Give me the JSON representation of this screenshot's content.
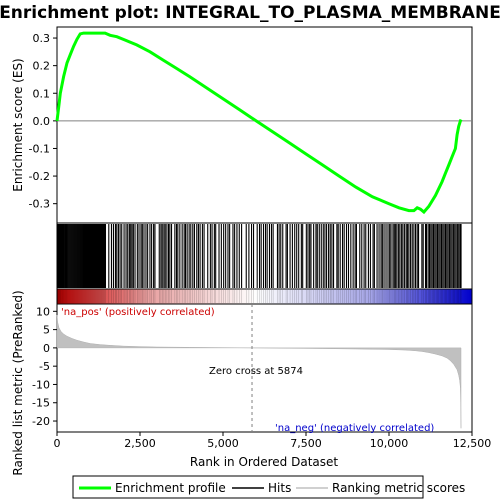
{
  "chart_data": {
    "type": "line",
    "title": "Enrichment plot: INTEGRAL_TO_PLASMA_MEMBRANE",
    "xlabel": "Rank in Ordered Dataset",
    "xlim": [
      0,
      12500
    ],
    "x_ticks": [
      0,
      2500,
      5000,
      7500,
      10000,
      12500
    ],
    "x_tick_labels": [
      "0",
      "2,500",
      "5,000",
      "7,500",
      "10,000",
      "12,500"
    ],
    "top_panel": {
      "ylabel": "Enrichment score (ES)",
      "ylim": [
        -0.37,
        0.34
      ],
      "y_ticks": [
        -0.3,
        -0.2,
        -0.1,
        0.0,
        0.1,
        0.2,
        0.3
      ],
      "y_tick_labels": [
        "-0.3",
        "-0.2",
        "-0.1",
        "0.0",
        "0.1",
        "0.2",
        "0.3"
      ],
      "series": [
        {
          "name": "Enrichment profile",
          "color": "#00ff00",
          "x": [
            0,
            50,
            100,
            200,
            300,
            400,
            500,
            600,
            700,
            800,
            900,
            1000,
            1200,
            1450,
            1600,
            1800,
            2000,
            2400,
            2800,
            3200,
            3600,
            4000,
            4500,
            5000,
            5500,
            5874,
            6500,
            7000,
            7500,
            8000,
            8500,
            9000,
            9500,
            10000,
            10300,
            10600,
            10750,
            10850,
            10950,
            11050,
            11200,
            11400,
            11600,
            11700,
            11800,
            11900,
            12000,
            12050,
            12100,
            12150,
            12170
          ],
          "y": [
            0.0,
            0.05,
            0.1,
            0.16,
            0.21,
            0.24,
            0.27,
            0.295,
            0.315,
            0.318,
            0.318,
            0.318,
            0.318,
            0.318,
            0.31,
            0.305,
            0.295,
            0.275,
            0.25,
            0.22,
            0.19,
            0.16,
            0.12,
            0.08,
            0.04,
            0.01,
            -0.04,
            -0.08,
            -0.12,
            -0.16,
            -0.2,
            -0.24,
            -0.275,
            -0.3,
            -0.315,
            -0.325,
            -0.325,
            -0.315,
            -0.32,
            -0.33,
            -0.31,
            -0.27,
            -0.22,
            -0.19,
            -0.16,
            -0.13,
            -0.1,
            -0.05,
            -0.02,
            0.0,
            0.005
          ]
        }
      ]
    },
    "hits_panel": {
      "label": "Hits",
      "hit_ranks": [
        5,
        18,
        30,
        45,
        60,
        75,
        90,
        105,
        120,
        140,
        160,
        180,
        200,
        220,
        245,
        270,
        295,
        320,
        350,
        380,
        410,
        440,
        470,
        500,
        530,
        560,
        590,
        620,
        650,
        680,
        710,
        740,
        770,
        800,
        830,
        860,
        890,
        920,
        950,
        980,
        1010,
        1040,
        1070,
        1100,
        1130,
        1160,
        1190,
        1220,
        1250,
        1280,
        1310,
        1340,
        1370,
        1400,
        1430,
        1460,
        1560,
        1640,
        1700,
        1760,
        1800,
        1850,
        1900,
        1950,
        2020,
        2080,
        2130,
        2180,
        2220,
        2260,
        2300,
        2350,
        2420,
        2470,
        2530,
        2570,
        2620,
        2680,
        2730,
        2800,
        2850,
        2910,
        2950,
        3080,
        3130,
        3170,
        3220,
        3260,
        3310,
        3360,
        3400,
        3450,
        3550,
        3600,
        3640,
        3700,
        3770,
        3830,
        3870,
        3920,
        3980,
        4030,
        4090,
        4140,
        4210,
        4260,
        4310,
        4380,
        4430,
        4540,
        4620,
        4670,
        4740,
        4780,
        4880,
        4950,
        5020,
        5080,
        5150,
        5200,
        5300,
        5350,
        5420,
        5490,
        5560,
        5700,
        5780,
        5860,
        5920,
        6030,
        6100,
        6150,
        6220,
        6280,
        6330,
        6400,
        6460,
        6510,
        6640,
        6690,
        6740,
        6800,
        6900,
        6940,
        7020,
        7090,
        7160,
        7220,
        7280,
        7360,
        7400,
        7510,
        7560,
        7610,
        7650,
        7730,
        7800,
        7840,
        7900,
        7960,
        8020,
        8070,
        8120,
        8180,
        8230,
        8280,
        8330,
        8430,
        8470,
        8530,
        8600,
        8650,
        8720,
        8780,
        8850,
        8920,
        8980,
        9020,
        9120,
        9180,
        9250,
        9300,
        9380,
        9440,
        9520,
        9560,
        9640,
        9700,
        9760,
        9800,
        9850,
        9910,
        9970,
        10020,
        10060,
        10120,
        10160,
        10200,
        10240,
        10290,
        10330,
        10380,
        10420,
        10470,
        10520,
        10560,
        10600,
        10650,
        10700,
        10750,
        10800,
        10850,
        10890,
        10990,
        11030,
        11100,
        11130,
        11180,
        11220,
        11260,
        11300,
        11340,
        11380,
        11420,
        11460,
        11500,
        11540,
        11580,
        11620,
        11660,
        11700,
        11740,
        11780,
        11820,
        11860,
        11900,
        11940,
        11980,
        12020,
        12060,
        12100,
        12140,
        12170
      ]
    },
    "bottom_panel": {
      "ylabel": "Ranked list metric (PreRanked)",
      "ylim": [
        -23,
        12
      ],
      "y_ticks": [
        -20,
        -15,
        -10,
        -5,
        0,
        5,
        10
      ],
      "y_tick_labels": [
        "-20",
        "-15",
        "-10",
        "-5",
        "0",
        "5",
        "10"
      ],
      "series": [
        {
          "name": "Ranking metric scores",
          "color": "#c0c0c0",
          "x": [
            0,
            20,
            60,
            120,
            200,
            300,
            450,
            600,
            800,
            1000,
            1300,
            1600,
            2000,
            2500,
            3000,
            4000,
            5000,
            5874,
            7000,
            8000,
            9000,
            10000,
            10500,
            10800,
            11000,
            11200,
            11400,
            11600,
            11750,
            11850,
            11950,
            12050,
            12100,
            12130,
            12150,
            12160,
            12170
          ],
          "y": [
            9.0,
            7.0,
            5.5,
            4.5,
            3.8,
            3.2,
            2.6,
            2.1,
            1.6,
            1.2,
            0.9,
            0.7,
            0.5,
            0.35,
            0.25,
            0.15,
            0.07,
            0.0,
            -0.1,
            -0.2,
            -0.3,
            -0.45,
            -0.6,
            -0.8,
            -1.0,
            -1.3,
            -1.7,
            -2.2,
            -2.8,
            -3.5,
            -4.5,
            -6.0,
            -7.5,
            -9.0,
            -11.0,
            -15.0,
            -22.0
          ]
        }
      ],
      "annotations": {
        "pos_label": "'na_pos' (positively correlated)",
        "pos_color": "#cc0000",
        "neg_label": "'na_neg' (negatively correlated)",
        "neg_color": "#0000cc",
        "zero_cross": "Zero cross at 5874",
        "zero_cross_x": 5874
      }
    },
    "legend": {
      "placement": "bottom",
      "items": [
        {
          "label": "Enrichment profile",
          "color": "#00ff00"
        },
        {
          "label": "Hits",
          "color": "#000000"
        },
        {
          "label": "Ranking metric scores",
          "color": "#c0c0c0"
        }
      ]
    },
    "colors": {
      "gradient_pos": "#cc0000",
      "gradient_neg": "#0000cc",
      "zero_line": "#808080"
    }
  }
}
